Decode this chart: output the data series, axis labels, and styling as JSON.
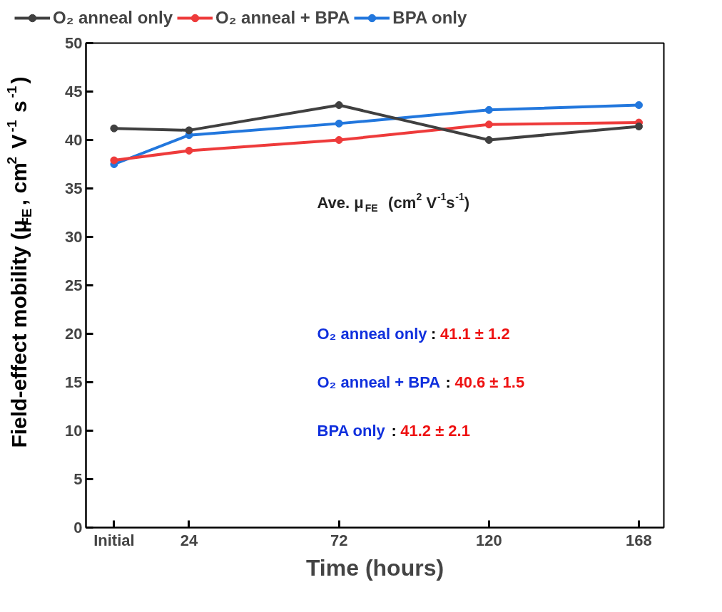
{
  "chart_data": {
    "type": "line",
    "xlabel": "Time (hours)",
    "ylabel": "Field-effect mobility (μ$_{FE}$, cm$^{2}$ V$^{-1}$ s$^{-1}$)",
    "x": [
      0,
      24,
      72,
      120,
      168
    ],
    "xlim": [
      -9,
      176
    ],
    "xticks": [
      {
        "value": 0,
        "label": "Initial"
      },
      24,
      72,
      120,
      168
    ],
    "ylim": [
      0,
      50
    ],
    "yticks": [
      0,
      5,
      10,
      15,
      20,
      25,
      30,
      35,
      40,
      45,
      50
    ],
    "series": [
      {
        "name": "O₂ anneal only",
        "color": "#404040",
        "values": [
          41.2,
          41.0,
          43.6,
          40.0,
          41.4
        ]
      },
      {
        "name": "O₂ anneal + BPA",
        "color": "#ee3b3b",
        "values": [
          37.9,
          38.9,
          40.0,
          41.6,
          41.8
        ]
      },
      {
        "name": "BPA only",
        "color": "#2277dd",
        "values": [
          37.5,
          40.5,
          41.7,
          43.1,
          43.6
        ]
      }
    ],
    "marker": "circle",
    "line_style": "solid",
    "legend": "top",
    "grid": false,
    "annotations": [
      "Ave. μ$_{FE}$  (cm$^{2}$ V$^{-1}$s$^{-1}$)",
      "O₂ anneal only : 41.1 ± 1.2",
      "O₂ anneal + BPA : 40.6 ± 1.5",
      "BPA only : 41.2 ± 2.1"
    ]
  }
}
